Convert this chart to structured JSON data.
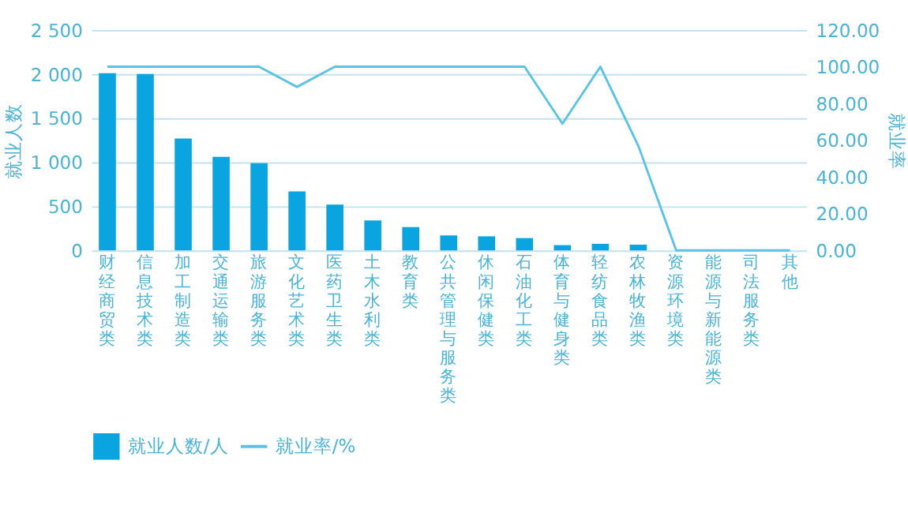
{
  "chart_data": {
    "type": "bar",
    "ylabel": "就业人数",
    "y2label": "就业率",
    "categories": [
      "财经商贸类",
      "信息技术类",
      "加工制造类",
      "交通运输类",
      "旅游服务类",
      "文化艺术类",
      "医药卫生类",
      "土木水利类",
      "教育类",
      "公共管理与服务类",
      "休闲保健类",
      "石油化工类",
      "体育与健身类",
      "轻纺食品类",
      "农林牧渔类",
      "资源环境类",
      "能源与新能源类",
      "司法服务类",
      "其他"
    ],
    "series": [
      {
        "name": "就业人数/人",
        "color": "#0aa5e0",
        "values": [
          2010,
          2000,
          1270,
          1060,
          990,
          670,
          520,
          340,
          265,
          170,
          160,
          140,
          60,
          75,
          65,
          0,
          0,
          0,
          0
        ]
      },
      {
        "name": "就业率/%",
        "type": "line",
        "axis": "y2",
        "color": "#5cc3e4",
        "values": [
          100,
          100,
          100,
          100,
          100,
          89,
          100,
          100,
          100,
          100,
          100,
          100,
          69,
          100,
          57,
          0,
          0,
          0,
          0
        ]
      }
    ],
    "ylim": [
      0,
      2500
    ],
    "yticks": [
      0,
      {
        "value": 500,
        "label": "500"
      },
      {
        "value": 1000,
        "label": "1 000"
      },
      {
        "value": 1500,
        "label": "1 500"
      },
      {
        "value": 2000,
        "label": "2 000"
      },
      {
        "value": 2500,
        "label": "2 500"
      }
    ],
    "y2lim": [
      0,
      120
    ],
    "y2ticks": [
      {
        "value": 0,
        "label": "0.00"
      },
      {
        "value": 20,
        "label": "20.00"
      },
      {
        "value": 40,
        "label": "40.00"
      },
      {
        "value": 60,
        "label": "60.00"
      },
      {
        "value": 80,
        "label": "80.00"
      },
      {
        "value": 100,
        "label": "100.00"
      },
      {
        "value": 120,
        "label": "120.00"
      }
    ],
    "grid": "y",
    "legend": "bottom",
    "marker": "none",
    "line_style": "solid"
  }
}
